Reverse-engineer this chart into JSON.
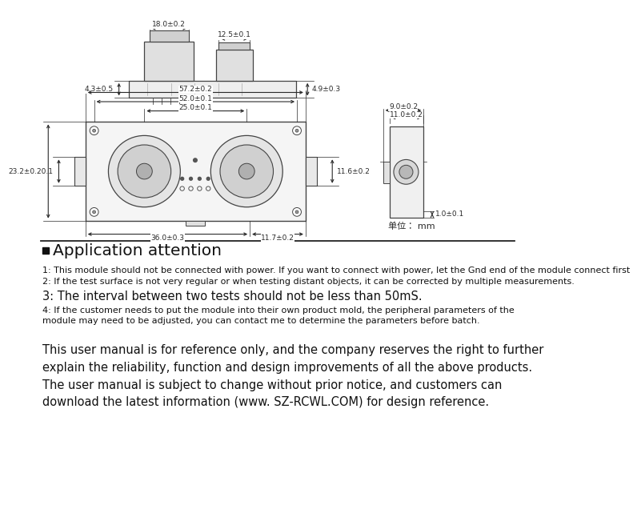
{
  "bg_color": "#ffffff",
  "section_header": "Application attention",
  "notes": [
    "1: This module should not be connected with power. If you want to connect with power, let the Gnd end of the module connect first",
    "2: If the test surface is not very regular or when testing distant objects, it can be corrected by multiple measurements.",
    "3: The interval between two tests should not be less than 50mS.",
    "4: If the customer needs to put the module into their own product mold, the peripheral parameters of the\nmodule may need to be adjusted, you can contact me to determine the parameters before batch."
  ],
  "footer_text": "This user manual is for reference only, and the company reserves the right to further\nexplain the reliability, function and design improvements of all the above products.\nThe user manual is subject to change without prior notice, and customers can\ndownload the latest information (www. SZ-RCWL.COM) for design reference.",
  "unit_label": "单位： mm",
  "dim_color": "#2a2a2a",
  "line_color": "#444444"
}
